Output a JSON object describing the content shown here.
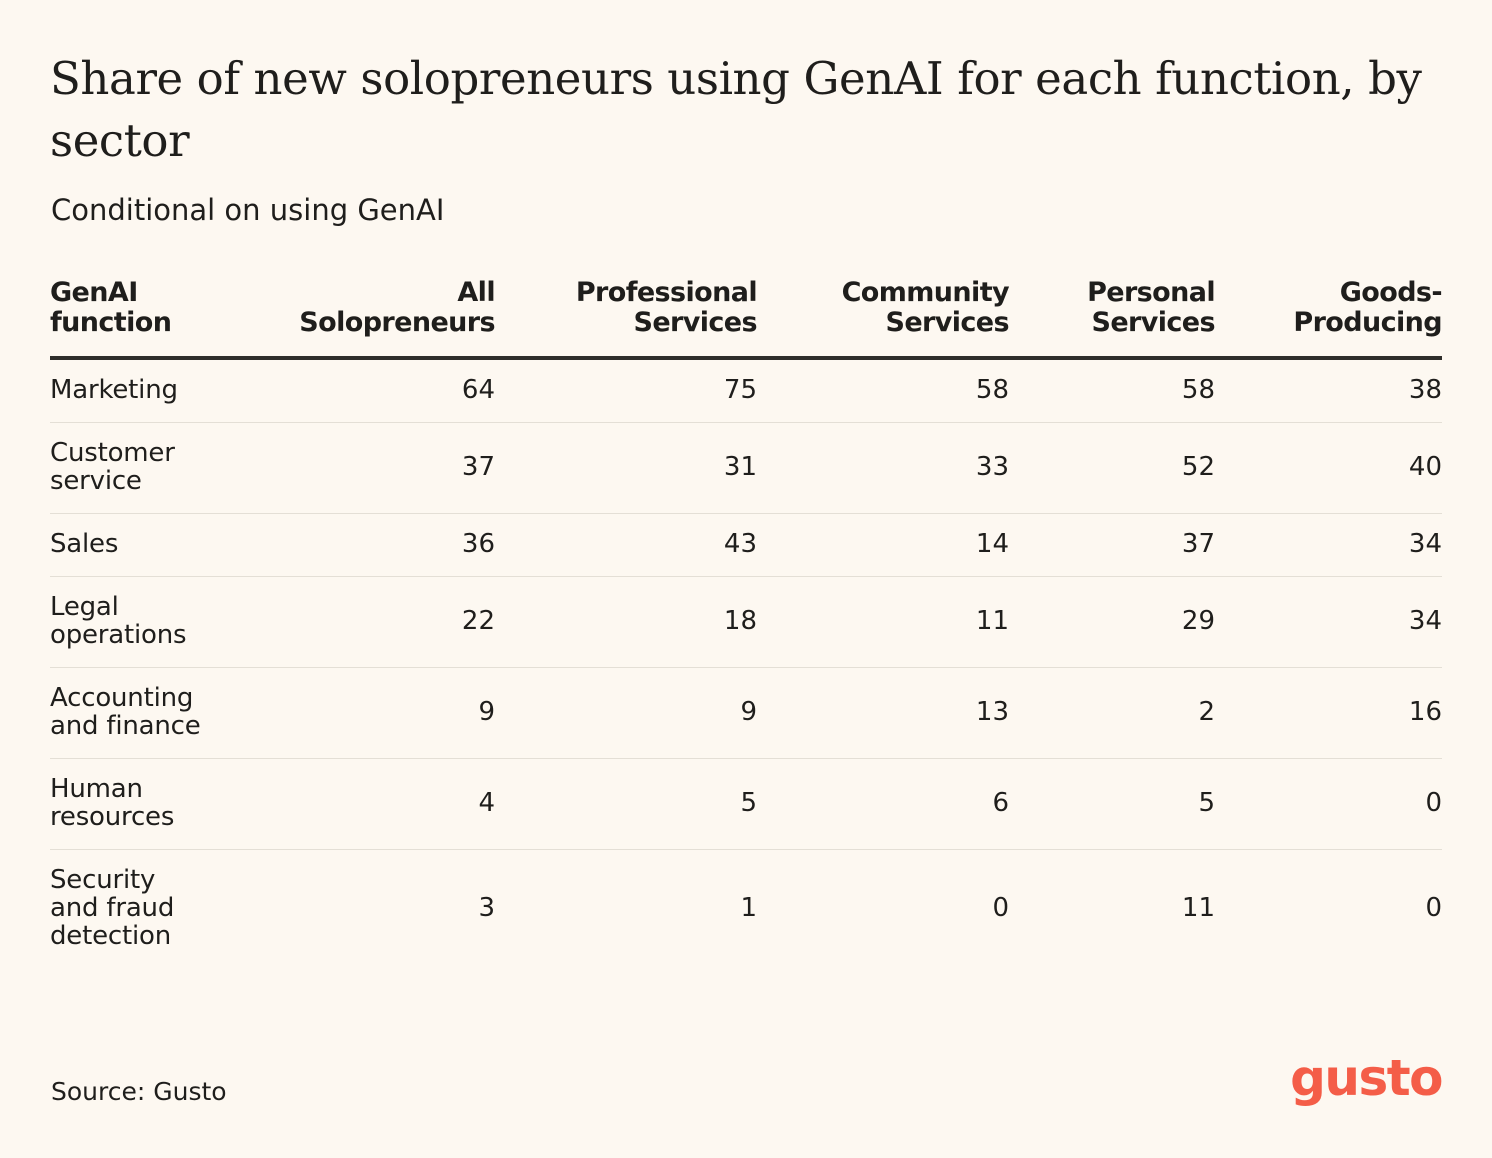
{
  "header": {
    "title": "Share of new solopreneurs using GenAI for each function, by sector",
    "subtitle": "Conditional on using GenAI"
  },
  "chart_data": {
    "type": "table",
    "columns": [
      {
        "lines": [
          "GenAI",
          "function"
        ]
      },
      {
        "lines": [
          "All",
          "Solopreneurs"
        ]
      },
      {
        "lines": [
          "Professional",
          "Services"
        ]
      },
      {
        "lines": [
          "Community",
          "Services"
        ]
      },
      {
        "lines": [
          "Personal",
          "Services"
        ]
      },
      {
        "lines": [
          "Goods-",
          "Producing"
        ]
      }
    ],
    "rows": [
      {
        "label": "Marketing",
        "values": [
          "64",
          "75",
          "58",
          "58",
          "38"
        ]
      },
      {
        "label": "Customer\nservice",
        "values": [
          "37",
          "31",
          "33",
          "52",
          "40"
        ]
      },
      {
        "label": "Sales",
        "values": [
          "36",
          "43",
          "14",
          "37",
          "34"
        ]
      },
      {
        "label": "Legal\noperations",
        "values": [
          "22",
          "18",
          "11",
          "29",
          "34"
        ]
      },
      {
        "label": "Accounting\nand finance",
        "values": [
          "9",
          "9",
          "13",
          "2",
          "16"
        ]
      },
      {
        "label": "Human\nresources",
        "values": [
          "4",
          "5",
          "6",
          "5",
          "0"
        ]
      },
      {
        "label": "Security\nand fraud\ndetection",
        "values": [
          "3",
          "1",
          "0",
          "11",
          "0"
        ]
      }
    ]
  },
  "footer": {
    "source": "Source: Gusto",
    "logo_text": "gusto"
  },
  "colors": {
    "background": "#fdf8f1",
    "text": "#1f1e1c",
    "brand": "#f45d48"
  }
}
